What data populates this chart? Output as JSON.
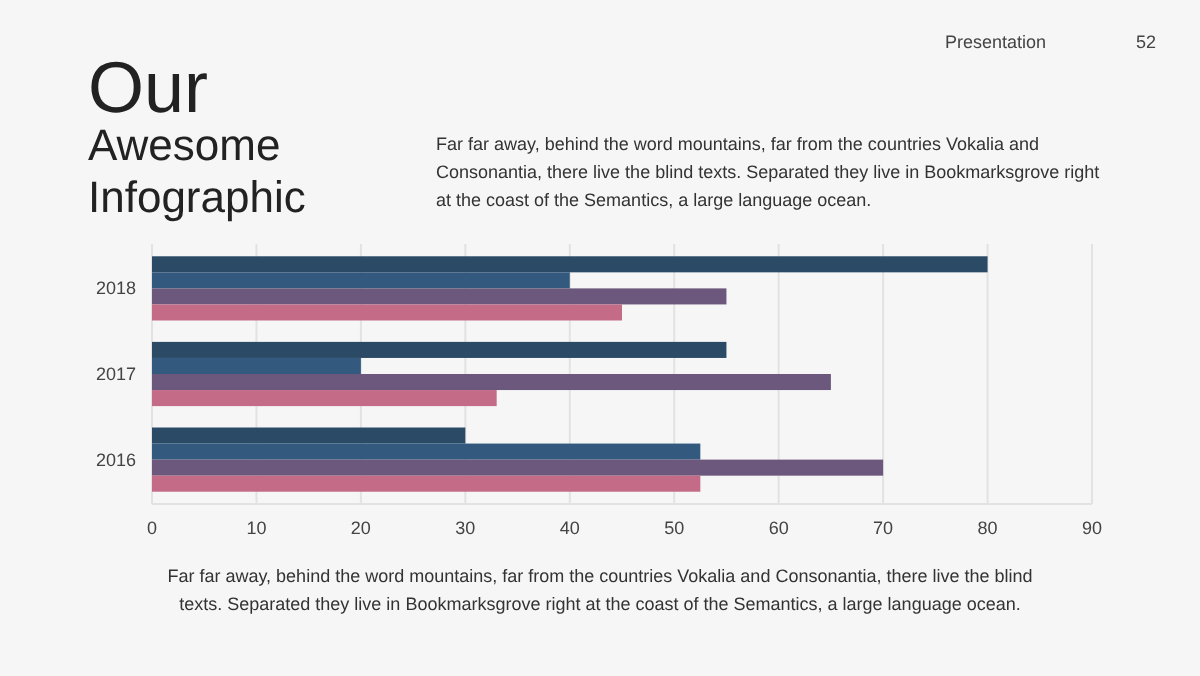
{
  "chart_data": {
    "type": "bar",
    "orientation": "horizontal",
    "title": "Our",
    "subtitle": "Awesome Infographic",
    "categories": [
      "2018",
      "2017",
      "2016"
    ],
    "series": [
      {
        "color": "#2b4a66",
        "values": [
          80,
          55,
          30
        ]
      },
      {
        "color": "#33597e",
        "values": [
          40,
          20,
          52.5
        ]
      },
      {
        "color": "#6c587c",
        "values": [
          55,
          65,
          70
        ]
      },
      {
        "color": "#c46b87",
        "values": [
          45,
          33,
          52.5
        ]
      }
    ],
    "xlim": [
      0,
      90
    ],
    "xticks": [
      0,
      10,
      20,
      30,
      40,
      50,
      60,
      70,
      80,
      90
    ],
    "grid": "x",
    "annotations": [
      "Presentation",
      "52",
      "Far far away, behind the word mountains, far from the countries Vokalia and Consonantia, there live the blind texts. Separated they live in Bookmarksgrove right at the coast of the Semantics, a large language ocean.",
      "Far far away, behind the word mountains, far from the countries Vokalia and Consonantia, there live the blind texts. Separated they live in Bookmarksgrove right at the coast of the Semantics, a large language ocean."
    ]
  }
}
